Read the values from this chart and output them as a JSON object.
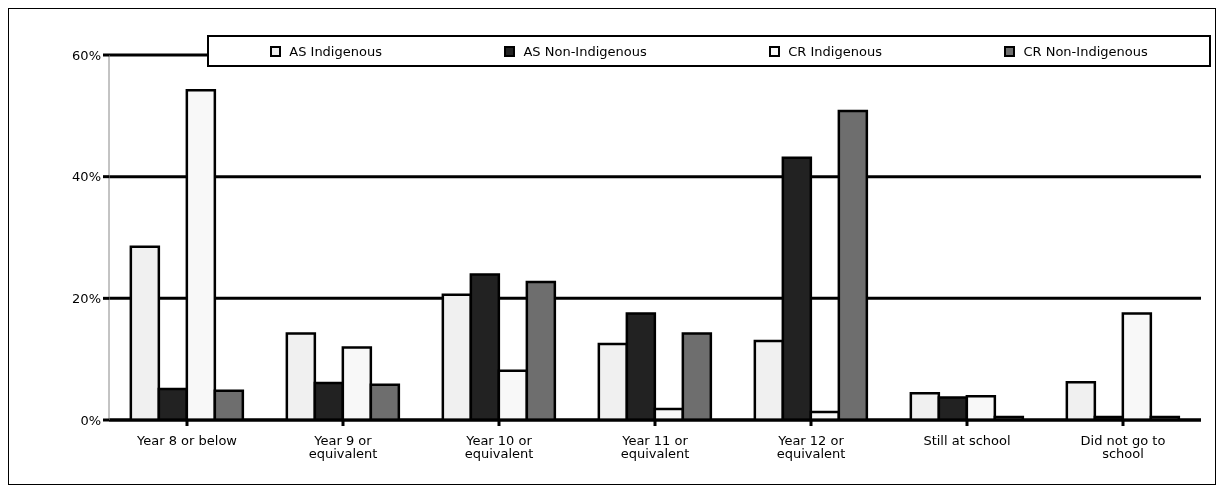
{
  "chart_data": {
    "type": "bar",
    "categories": [
      "Year 8 or below",
      "Year 9 or equivalent",
      "Year 10 or equivalent",
      "Year 11 or equivalent",
      "Year 12 or equivalent",
      "Still at school",
      "Did not go to school"
    ],
    "series": [
      {
        "name": "AS Indigenous",
        "color": "#f0f0f0",
        "values": [
          28.5,
          14.2,
          20.6,
          12.5,
          13.0,
          4.4,
          6.2
        ]
      },
      {
        "name": "AS Non-Indigenous",
        "color": "#222222",
        "values": [
          5.1,
          6.1,
          23.9,
          17.5,
          43.1,
          3.7,
          0.5
        ]
      },
      {
        "name": "CR Indigenous",
        "color": "#f8f8f8",
        "values": [
          54.2,
          11.9,
          8.1,
          1.8,
          1.3,
          3.9,
          17.5
        ]
      },
      {
        "name": "CR Non-Indigenous",
        "color": "#6e6e6e",
        "values": [
          4.8,
          5.8,
          22.7,
          14.2,
          50.8,
          0.5,
          0.5
        ]
      }
    ],
    "ylim": [
      0,
      60
    ],
    "yticks": [
      {
        "value": 0,
        "label": "0%"
      },
      {
        "value": 20,
        "label": "20%"
      },
      {
        "value": 40,
        "label": "40%"
      },
      {
        "value": 60,
        "label": "60%"
      }
    ],
    "grid": "y",
    "legend": "top"
  }
}
